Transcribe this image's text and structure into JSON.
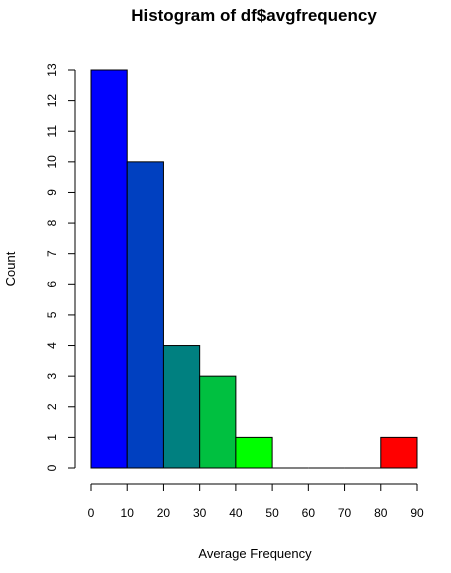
{
  "chart_data": {
    "type": "bar",
    "title": "Histogram of df$avgfrequency",
    "xlabel": "Average Frequency",
    "ylabel": "Count",
    "bins": [
      {
        "start": 0,
        "end": 10,
        "count": 13,
        "color": "#0000FF"
      },
      {
        "start": 10,
        "end": 20,
        "count": 10,
        "color": "#0040C0"
      },
      {
        "start": 20,
        "end": 30,
        "count": 4,
        "color": "#008080"
      },
      {
        "start": 30,
        "end": 40,
        "count": 3,
        "color": "#00C040"
      },
      {
        "start": 40,
        "end": 50,
        "count": 1,
        "color": "#00FF00"
      },
      {
        "start": 50,
        "end": 60,
        "count": 0,
        "color": "#FFFF00"
      },
      {
        "start": 60,
        "end": 70,
        "count": 0,
        "color": "#FFC000"
      },
      {
        "start": 70,
        "end": 80,
        "count": 0,
        "color": "#FF8000"
      },
      {
        "start": 80,
        "end": 90,
        "count": 1,
        "color": "#FF0000"
      }
    ],
    "xlim": [
      0,
      90
    ],
    "ylim": [
      0,
      13
    ],
    "x_ticks": [
      "0",
      "10",
      "20",
      "30",
      "40",
      "50",
      "60",
      "70",
      "80",
      "90"
    ],
    "y_ticks": [
      "0",
      "1",
      "2",
      "3",
      "4",
      "5",
      "6",
      "7",
      "8",
      "9",
      "10",
      "11",
      "12",
      "13"
    ],
    "grid": false,
    "legend": "none"
  }
}
